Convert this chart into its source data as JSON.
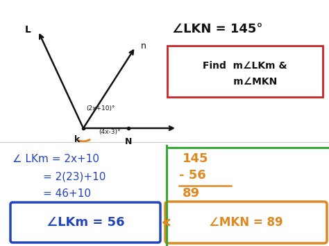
{
  "bg_color": "#ffffff",
  "title_text": "∠LKN = 145°",
  "find_line1": "Find  m∠LKm &",
  "find_line2": "      m∠MKN",
  "lkm_line1": "∠ LKm = 2x+10",
  "lkm_line2": "= 2(23)+10",
  "lkm_line3": "= 46+10",
  "lkm_answer": "∠LKm = 56",
  "calc_top": "145",
  "calc_mid": "- 56",
  "calc_bot": "89",
  "mkn_answer": "∠MKN = 89",
  "label_L": "L",
  "label_n": "n",
  "label_k": "k",
  "label_N": "N",
  "label_lkm_angle": "(2x+10)°",
  "label_mkn_angle": "(4x-3)°",
  "blue": "#2244bb",
  "orange": "#e08820",
  "red": "#cc2222",
  "green": "#33aa33",
  "black": "#111111",
  "fig_w": 4.74,
  "fig_h": 3.55,
  "dpi": 100
}
